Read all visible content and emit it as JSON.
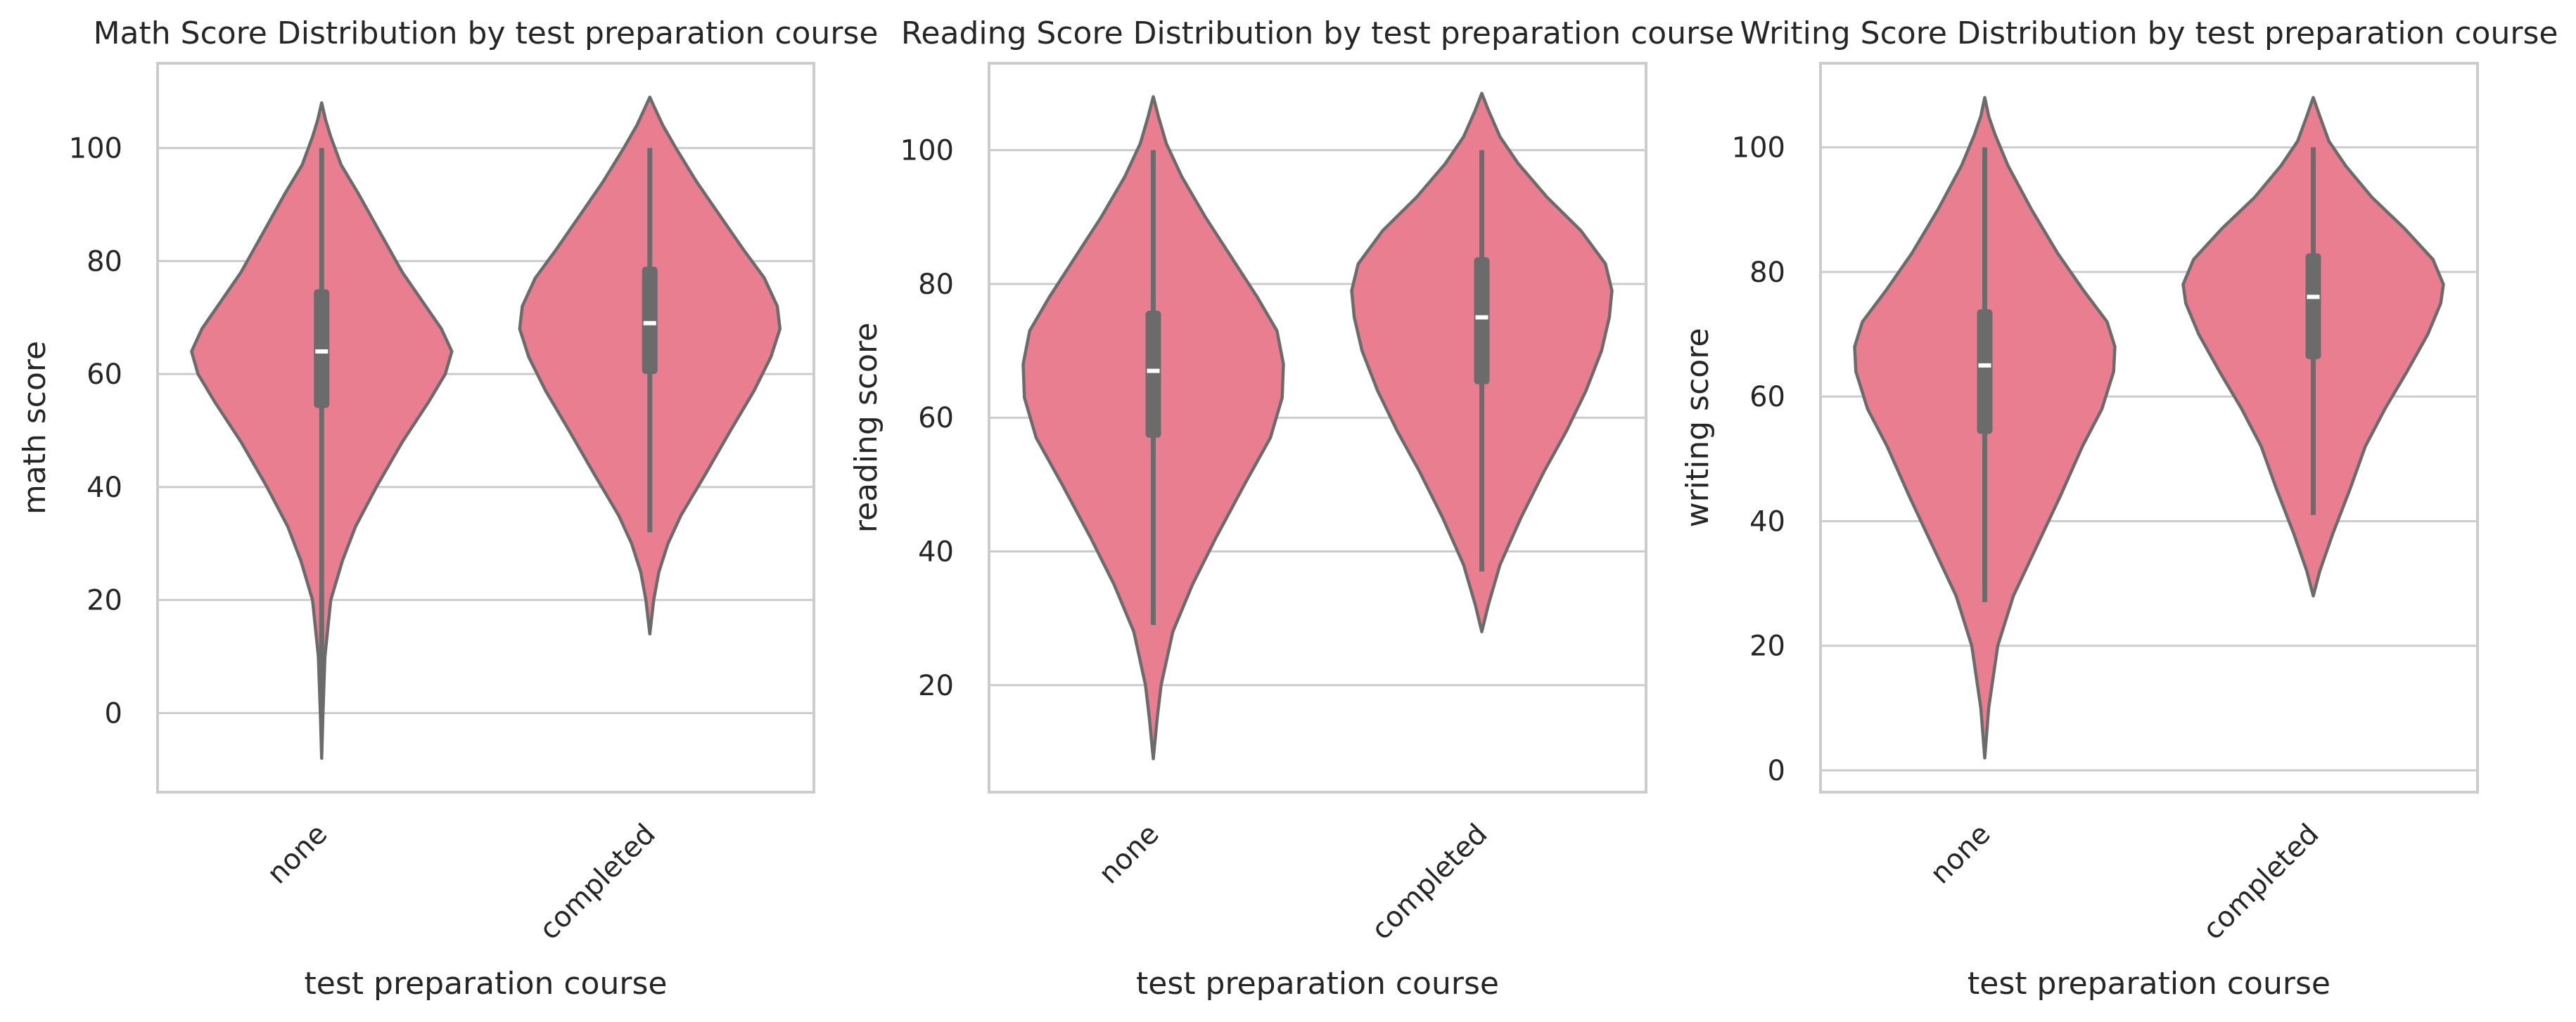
{
  "colors": {
    "violin_fill": "#e87e8f",
    "violin_edge": "#6b6b6b",
    "grid": "#cccccc",
    "median": "#ffffff"
  },
  "chart_data": [
    {
      "type": "violin",
      "title": "Math Score Distribution by test preparation course",
      "xlabel": "test preparation course",
      "ylabel": "math score",
      "categories": [
        "none",
        "completed"
      ],
      "ylim": [
        -14,
        115
      ],
      "yticks": [
        0,
        20,
        40,
        60,
        80,
        100
      ],
      "grid": true,
      "violins": [
        {
          "category": "none",
          "stats": {
            "min": 0,
            "q1": 54,
            "median": 64,
            "q3": 75,
            "max": 100
          },
          "density": [
            [
              -8,
              0
            ],
            [
              0,
              0.01
            ],
            [
              10,
              0.025
            ],
            [
              20,
              0.07
            ],
            [
              27,
              0.16
            ],
            [
              33,
              0.26
            ],
            [
              40,
              0.42
            ],
            [
              48,
              0.62
            ],
            [
              55,
              0.82
            ],
            [
              60,
              0.95
            ],
            [
              64,
              1
            ],
            [
              68,
              0.92
            ],
            [
              72,
              0.8
            ],
            [
              78,
              0.62
            ],
            [
              85,
              0.45
            ],
            [
              92,
              0.28
            ],
            [
              97,
              0.15
            ],
            [
              102,
              0.07
            ],
            [
              105,
              0.03
            ],
            [
              108,
              0
            ]
          ]
        },
        {
          "category": "completed",
          "stats": {
            "min": 32,
            "q1": 60,
            "median": 69,
            "q3": 79,
            "max": 100
          },
          "density": [
            [
              14,
              0
            ],
            [
              20,
              0.03
            ],
            [
              25,
              0.07
            ],
            [
              30,
              0.14
            ],
            [
              35,
              0.24
            ],
            [
              42,
              0.42
            ],
            [
              50,
              0.62
            ],
            [
              57,
              0.8
            ],
            [
              63,
              0.93
            ],
            [
              68,
              1
            ],
            [
              72,
              0.98
            ],
            [
              77,
              0.88
            ],
            [
              82,
              0.72
            ],
            [
              88,
              0.54
            ],
            [
              94,
              0.36
            ],
            [
              100,
              0.2
            ],
            [
              104,
              0.1
            ],
            [
              107,
              0.04
            ],
            [
              109,
              0
            ]
          ]
        }
      ]
    },
    {
      "type": "violin",
      "title": "Reading Score Distribution by test preparation course",
      "xlabel": "test preparation course",
      "ylabel": "reading score",
      "categories": [
        "none",
        "completed"
      ],
      "ylim": [
        4,
        113
      ],
      "yticks": [
        20,
        40,
        60,
        80,
        100
      ],
      "grid": true,
      "violins": [
        {
          "category": "none",
          "stats": {
            "min": 29,
            "q1": 57,
            "median": 67,
            "q3": 76,
            "max": 100
          },
          "density": [
            [
              9,
              0
            ],
            [
              15,
              0.03
            ],
            [
              20,
              0.06
            ],
            [
              28,
              0.15
            ],
            [
              35,
              0.3
            ],
            [
              42,
              0.48
            ],
            [
              50,
              0.7
            ],
            [
              57,
              0.9
            ],
            [
              63,
              0.99
            ],
            [
              68,
              1
            ],
            [
              73,
              0.95
            ],
            [
              78,
              0.8
            ],
            [
              84,
              0.6
            ],
            [
              90,
              0.4
            ],
            [
              96,
              0.22
            ],
            [
              101,
              0.1
            ],
            [
              105,
              0.04
            ],
            [
              108,
              0
            ]
          ]
        },
        {
          "category": "completed",
          "stats": {
            "min": 37,
            "q1": 65,
            "median": 75,
            "q3": 84,
            "max": 100
          },
          "density": [
            [
              28,
              0
            ],
            [
              32,
              0.05
            ],
            [
              38,
              0.14
            ],
            [
              45,
              0.3
            ],
            [
              52,
              0.48
            ],
            [
              58,
              0.65
            ],
            [
              64,
              0.8
            ],
            [
              70,
              0.92
            ],
            [
              75,
              0.98
            ],
            [
              79,
              1
            ],
            [
              83,
              0.95
            ],
            [
              88,
              0.76
            ],
            [
              93,
              0.5
            ],
            [
              98,
              0.28
            ],
            [
              102,
              0.14
            ],
            [
              106,
              0.05
            ],
            [
              108.5,
              0
            ]
          ]
        }
      ]
    },
    {
      "type": "violin",
      "title": "Writing Score Distribution by test preparation course",
      "xlabel": "test preparation course",
      "ylabel": "writing score",
      "categories": [
        "none",
        "completed"
      ],
      "ylim": [
        -3.5,
        113.5
      ],
      "yticks": [
        0,
        20,
        40,
        60,
        80,
        100
      ],
      "grid": true,
      "violins": [
        {
          "category": "none",
          "stats": {
            "min": 27,
            "q1": 54,
            "median": 65,
            "q3": 74,
            "max": 100
          },
          "density": [
            [
              2,
              0
            ],
            [
              10,
              0.03
            ],
            [
              20,
              0.1
            ],
            [
              28,
              0.22
            ],
            [
              36,
              0.4
            ],
            [
              44,
              0.58
            ],
            [
              52,
              0.75
            ],
            [
              58,
              0.9
            ],
            [
              64,
              0.99
            ],
            [
              68,
              1
            ],
            [
              72,
              0.94
            ],
            [
              77,
              0.76
            ],
            [
              83,
              0.56
            ],
            [
              90,
              0.36
            ],
            [
              97,
              0.18
            ],
            [
              102,
              0.08
            ],
            [
              105,
              0.03
            ],
            [
              108,
              0
            ]
          ]
        },
        {
          "category": "completed",
          "stats": {
            "min": 41,
            "q1": 66,
            "median": 76,
            "q3": 83,
            "max": 100
          },
          "density": [
            [
              28,
              0
            ],
            [
              32,
              0.05
            ],
            [
              38,
              0.15
            ],
            [
              45,
              0.28
            ],
            [
              52,
              0.4
            ],
            [
              58,
              0.55
            ],
            [
              64,
              0.72
            ],
            [
              70,
              0.88
            ],
            [
              75,
              0.98
            ],
            [
              78,
              1
            ],
            [
              82,
              0.92
            ],
            [
              87,
              0.7
            ],
            [
              92,
              0.45
            ],
            [
              97,
              0.25
            ],
            [
              101,
              0.12
            ],
            [
              105,
              0.05
            ],
            [
              108,
              0
            ]
          ]
        }
      ]
    }
  ]
}
